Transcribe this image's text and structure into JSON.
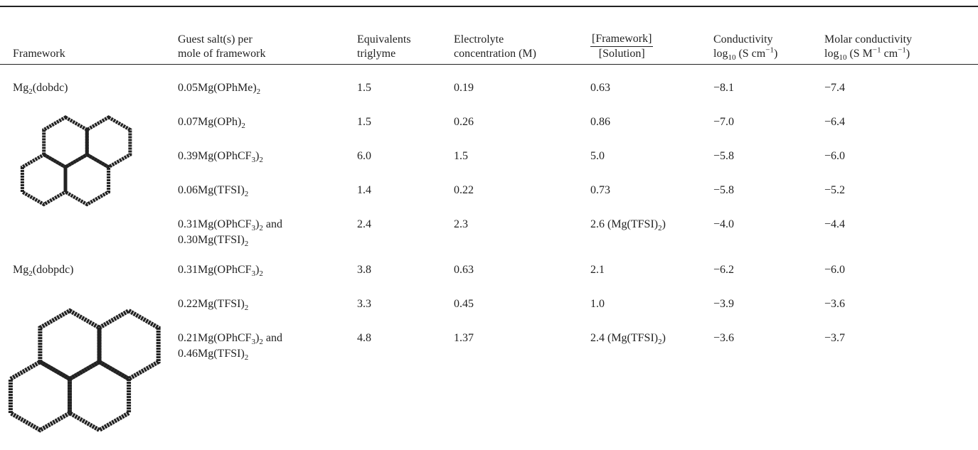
{
  "table": {
    "headers": [
      "Framework",
      {
        "lines": [
          "Guest salt(s) per",
          "mole of framework"
        ]
      },
      {
        "lines": [
          "Equivalents",
          "triglyme"
        ]
      },
      {
        "lines": [
          "Electrolyte",
          "concentration (M)"
        ]
      },
      {
        "numerator": "[Framework]",
        "denominator": "[Solution]"
      },
      {
        "lines": [
          "Conductivity",
          [
            "log",
            {
              "sub": "10"
            },
            " (S cm",
            {
              "sup": "−1"
            },
            ")"
          ]
        ]
      },
      {
        "lines": [
          "Molar conductivity",
          [
            "log",
            {
              "sub": "10"
            },
            " (S M",
            {
              "sup": "−1"
            },
            " cm",
            {
              "sup": "−1"
            },
            ")"
          ]
        ]
      }
    ],
    "groups": [
      {
        "framework": [
          "Mg",
          {
            "sub": "2"
          },
          "(dobdc)"
        ],
        "rows": [
          [
            [
              "0.05Mg(OPhMe)",
              {
                "sub": "2"
              }
            ],
            "1.5",
            "0.19",
            "0.63",
            "−8.1",
            "−7.4"
          ],
          [
            [
              "0.07Mg(OPh)",
              {
                "sub": "2"
              }
            ],
            "1.5",
            "0.26",
            "0.86",
            "−7.0",
            "−6.4"
          ],
          [
            [
              "0.39Mg(OPhCF",
              {
                "sub": "3"
              },
              ")",
              {
                "sub": "2"
              }
            ],
            "6.0",
            "1.5",
            "5.0",
            "−5.8",
            "−6.0"
          ],
          [
            [
              "0.06Mg(TFSI)",
              {
                "sub": "2"
              }
            ],
            "1.4",
            "0.22",
            "0.73",
            "−5.8",
            "−5.2"
          ],
          [
            {
              "lines": [
                [
                  "0.31Mg(OPhCF",
                  {
                    "sub": "3"
                  },
                  ")",
                  {
                    "sub": "2"
                  },
                  " and"
                ],
                [
                  "0.30Mg(TFSI)",
                  {
                    "sub": "2"
                  }
                ]
              ]
            },
            "2.4",
            "2.3",
            [
              "2.6 (Mg(TFSI)",
              {
                "sub": "2"
              },
              ")"
            ],
            "−4.0",
            "−4.4"
          ]
        ]
      },
      {
        "framework": [
          "Mg",
          {
            "sub": "2"
          },
          "(dobpdc)"
        ],
        "rows": [
          [
            [
              "0.31Mg(OPhCF",
              {
                "sub": "3"
              },
              ")",
              {
                "sub": "2"
              }
            ],
            "3.8",
            "0.63",
            "2.1",
            "−6.2",
            "−6.0"
          ],
          [
            [
              "0.22Mg(TFSI)",
              {
                "sub": "2"
              }
            ],
            "3.3",
            "0.45",
            "1.0",
            "−3.9",
            "−3.6"
          ],
          [
            {
              "lines": [
                [
                  "0.21Mg(OPhCF",
                  {
                    "sub": "3"
                  },
                  ")",
                  {
                    "sub": "2"
                  },
                  " and"
                ],
                [
                  "0.46Mg(TFSI)",
                  {
                    "sub": "2"
                  }
                ]
              ]
            },
            "4.8",
            "1.37",
            [
              "2.4 (Mg(TFSI)",
              {
                "sub": "2"
              },
              ")"
            ],
            "−3.6",
            "−3.7"
          ]
        ]
      }
    ]
  }
}
